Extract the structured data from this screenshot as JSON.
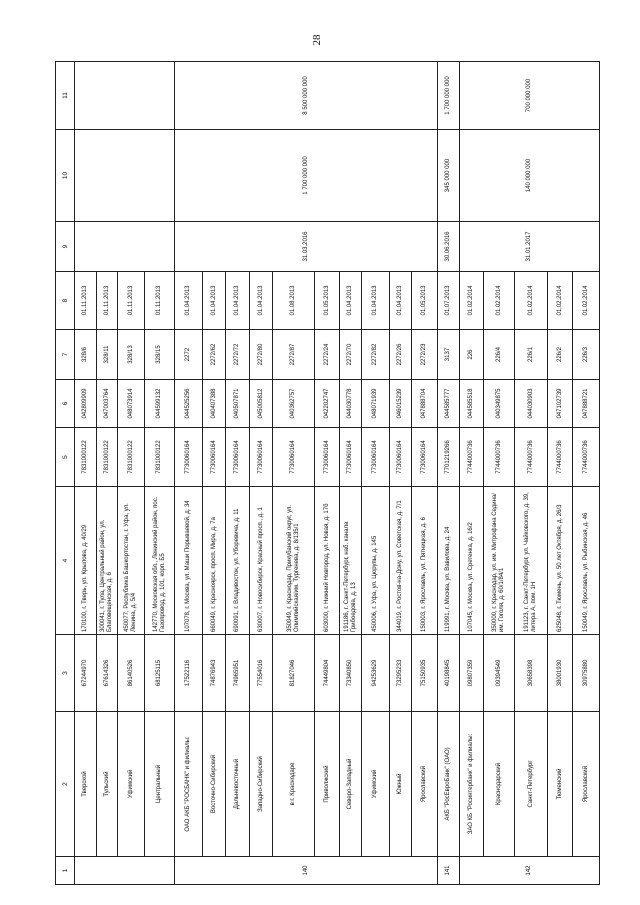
{
  "page_number": "28",
  "headers": [
    "1",
    "2",
    "3",
    "4",
    "5",
    "6",
    "7",
    "8",
    "9",
    "10",
    "11"
  ],
  "groups": [
    {
      "num": "",
      "c9": "",
      "c10": "",
      "c11": "",
      "rows": [
        {
          "name": "Тверской",
          "okpo": "67244970",
          "addr": "170100, г. Тверь, ул. Крылова, д. 40/29",
          "inn": "7831000122",
          "bik": "042809909",
          "reg": "328/6",
          "date": "01.11.2013"
        },
        {
          "name": "Тульский",
          "okpo": "67614326",
          "addr": "300041, г. Тула, Центральный район, ул. Благовещенская, д. 6",
          "inn": "7831000122",
          "bik": "047003764",
          "reg": "328/11",
          "date": "01.11.2013"
        },
        {
          "name": "Уфимский",
          "okpo": "86140526",
          "addr": "450077, Республика Башкортостан, г. Уфа, ул. Ленина, д. 5/4",
          "inn": "7831000122",
          "bik": "048073914",
          "reg": "328/13",
          "date": "01.11.2013"
        },
        {
          "name": "Центральный",
          "okpo": "68125115",
          "addr": "142770, Московская обл., Ленинский район, пос. Газопровод, д. 101, корп. Б5",
          "inn": "7831000122",
          "bik": "044599132",
          "reg": "328/15",
          "date": "01.11.2013"
        }
      ]
    },
    {
      "num": "140",
      "c9": "31.03.2016",
      "c10": "1 700 000 000",
      "c11": "8 500 000 000",
      "rows": [
        {
          "name": "ОАО АКБ \"РОСБАНК\" и филиалы:",
          "okpo": "17522116",
          "addr": "107078, г. Москва, ул. Маши Порываевой, д. 34",
          "inn": "7730060164",
          "bik": "044525256",
          "reg": "2272",
          "date": "01.04.2013"
        },
        {
          "name": "Восточно-Сибирский",
          "okpo": "74876943",
          "addr": "660049, г. Красноярск, просп. Мира, д. 7а",
          "inn": "7730060164",
          "bik": "040407388",
          "reg": "2272/62",
          "date": "01.04.2013"
        },
        {
          "name": "Дальневосточный",
          "okpo": "74965951",
          "addr": "690091, г. Владивосток, ул. Уборевича, д. 11",
          "inn": "7730060164",
          "bik": "040507871",
          "reg": "2272/72",
          "date": "01.04.2013"
        },
        {
          "name": "Западно-Сибирский",
          "okpo": "77554016",
          "addr": "630007, г. Новосибирск, Красный просп., д. 1",
          "inn": "7730060164",
          "bik": "045005812",
          "reg": "2272/80",
          "date": "01.04.2013"
        },
        {
          "name": "в г. Краснодаре",
          "okpo": "81827046",
          "addr": "350049, г. Краснодар, Прикубанский округ, ул. Олимпийская/им. Тургенева, д. 8/135/1",
          "inn": "7730060164",
          "bik": "040362757",
          "reg": "2272/87",
          "date": "01.08.2013"
        },
        {
          "name": "Приволжский",
          "okpo": "74449804",
          "addr": "603000, г. Нижний Новгород, ул. Новая, д. 17б",
          "inn": "7730060164",
          "bik": "042202747",
          "reg": "2272/24",
          "date": "01.05.2013"
        },
        {
          "name": "Северо-Западный",
          "okpo": "73340850",
          "addr": "191186, г. Санкт-Петербург, наб. канала Грибоедова, д. 13",
          "inn": "7730060164",
          "bik": "044030778",
          "reg": "2272/70",
          "date": "01.04.2013"
        },
        {
          "name": "Уфимский",
          "okpo": "94253629",
          "addr": "450006, г. Уфа, ул. Цюрупы, д. 145",
          "inn": "7730060164",
          "bik": "048071939",
          "reg": "2272/82",
          "date": "01.04.2013"
        },
        {
          "name": "Южный",
          "okpo": "73295233",
          "addr": "344019, г. Ростов-на-Дону, ул. Советская, д. 7/1",
          "inn": "7730060164",
          "bik": "046015239",
          "reg": "2272/26",
          "date": "01.04.2013"
        },
        {
          "name": "Ярославский",
          "okpo": "75150935",
          "addr": "150003, г. Ярославль, ул. Пятницкая, д. 6",
          "inn": "7730060164",
          "bik": "047888704",
          "reg": "2272/23",
          "date": "01.05.2013"
        }
      ]
    },
    {
      "num": "141",
      "c9": "30.06.2016",
      "c10": "345 000 000",
      "c11": "1 700 000 000",
      "rows": [
        {
          "name": "АКБ \"РосЕвроБанк\" (ОАО)",
          "okpo": "40198845",
          "addr": "119991, г. Москва, ул. Вавилова, д. 24",
          "inn": "7701219266",
          "bik": "044585777",
          "reg": "3137",
          "date": "01.07.2013"
        }
      ]
    },
    {
      "num": "142",
      "c9": "31.01.2017",
      "c10": "140 000 000",
      "c11": "700 000 000",
      "rows": [
        {
          "name": "ЗАО КБ \"Росинтербанк\" и филиалы:",
          "okpo": "09807359",
          "addr": "107045, г. Москва, ул. Сретенка, д. 16/2",
          "inn": "7744000736",
          "bik": "044585518",
          "reg": "226",
          "date": "01.02.2014"
        },
        {
          "name": "Краснодарский",
          "okpo": "09394549",
          "addr": "350000, г. Краснодар, ул. им. Митрофана Седина/ им. Гоголя, д. 60/1/84/1",
          "inn": "7744000736",
          "bik": "040349875",
          "reg": "226/4",
          "date": "01.02.2014"
        },
        {
          "name": "Санкт-Петербург",
          "okpo": "30658398",
          "addr": "191123, г. Санкт-Петербург, ул. Чайковского, д. 39, литера А, пом. 1Н",
          "inn": "7744000736",
          "bik": "044030903",
          "reg": "226/1",
          "date": "01.02.2014"
        },
        {
          "name": "Тюменский",
          "okpo": "38001930",
          "addr": "625048, г. Тюмень, ул. 50 лет Октября, д. 26/3",
          "inn": "7744000736",
          "bik": "047102739",
          "reg": "226/2",
          "date": "01.02.2014"
        },
        {
          "name": "Ярославский",
          "okpo": "30975880",
          "addr": "150049, г. Ярославль, ул. Рыбинская, д. 46",
          "inn": "7744000736",
          "bik": "047888721",
          "reg": "226/3",
          "date": "01.02.2014"
        }
      ]
    }
  ]
}
